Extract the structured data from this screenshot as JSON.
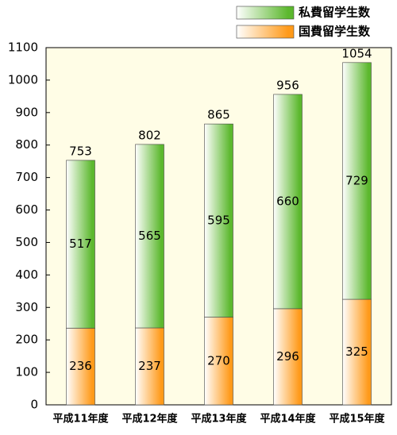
{
  "chart_data": {
    "type": "stacked-bar",
    "categories": [
      "平成11年度",
      "平成12年度",
      "平成13年度",
      "平成14年度",
      "平成15年度"
    ],
    "series": [
      {
        "name": "私費留学生数",
        "color": "#5cb82e",
        "values": [
          517,
          565,
          595,
          660,
          729
        ]
      },
      {
        "name": "国費留学生数",
        "color": "#ff9a1a",
        "values": [
          236,
          237,
          270,
          296,
          325
        ]
      }
    ],
    "totals": [
      753,
      802,
      865,
      956,
      1054
    ],
    "ylim": [
      0,
      1100
    ],
    "yticks": [
      0,
      100,
      200,
      300,
      400,
      500,
      600,
      700,
      800,
      900,
      1000,
      1100
    ],
    "legend": "top-right"
  }
}
